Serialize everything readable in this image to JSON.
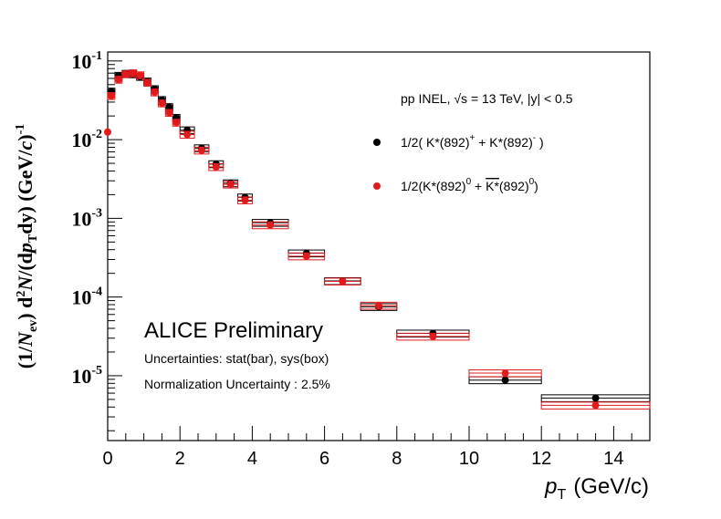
{
  "chart_data": {
    "type": "scatter",
    "title": "",
    "xlabel_main": "p",
    "xlabel_sub": "T",
    "xlabel_unit": "(GeV/c)",
    "ylabel": "(1/N_ev) d²N/(dp_T dy) (GeV/c)⁻¹",
    "xlim": [
      0,
      15
    ],
    "ylim": [
      1.5e-06,
      0.13
    ],
    "yscale": "log",
    "x_ticks": [
      "0",
      "2",
      "4",
      "6",
      "8",
      "10",
      "12",
      "14"
    ],
    "y_ticks": [
      "10",
      "10",
      "10",
      "10",
      "10"
    ],
    "y_tick_exponents": [
      "-1",
      "-2",
      "-3",
      "-4",
      "-5"
    ],
    "annotations": {
      "experiment": "ALICE Preliminary",
      "uncertainties": "Uncertainties: stat(bar), sys(box)",
      "normalization": "Normalization Uncertainty : 2.5%",
      "system": "pp INEL, √s = 13 TeV, |y| < 0.5"
    },
    "legend_position": "top-right",
    "series": [
      {
        "name": "1/2( K*(892)+ + K*(892)- )",
        "color": "#000000",
        "points": [
          {
            "x": 0.1,
            "xlo": 0.0,
            "xhi": 0.2,
            "y": 0.041
          },
          {
            "x": 0.3,
            "xlo": 0.2,
            "xhi": 0.4,
            "y": 0.065
          },
          {
            "x": 0.5,
            "xlo": 0.4,
            "xhi": 0.6,
            "y": 0.069
          },
          {
            "x": 0.7,
            "xlo": 0.6,
            "xhi": 0.8,
            "y": 0.068
          },
          {
            "x": 0.9,
            "xlo": 0.8,
            "xhi": 1.0,
            "y": 0.063
          },
          {
            "x": 1.1,
            "xlo": 1.0,
            "xhi": 1.2,
            "y": 0.055
          },
          {
            "x": 1.3,
            "xlo": 1.2,
            "xhi": 1.4,
            "y": 0.044
          },
          {
            "x": 1.5,
            "xlo": 1.4,
            "xhi": 1.6,
            "y": 0.032
          },
          {
            "x": 1.7,
            "xlo": 1.6,
            "xhi": 1.8,
            "y": 0.026
          },
          {
            "x": 1.9,
            "xlo": 1.8,
            "xhi": 2.0,
            "y": 0.019
          },
          {
            "x": 2.2,
            "xlo": 2.0,
            "xhi": 2.4,
            "y": 0.0132
          },
          {
            "x": 2.6,
            "xlo": 2.4,
            "xhi": 2.8,
            "y": 0.0078
          },
          {
            "x": 3.0,
            "xlo": 2.8,
            "xhi": 3.2,
            "y": 0.0049
          },
          {
            "x": 3.4,
            "xlo": 3.2,
            "xhi": 3.6,
            "y": 0.0028
          },
          {
            "x": 3.8,
            "xlo": 3.6,
            "xhi": 4.0,
            "y": 0.00185
          },
          {
            "x": 4.5,
            "xlo": 4.0,
            "xhi": 5.0,
            "y": 0.00088
          },
          {
            "x": 5.5,
            "xlo": 5.0,
            "xhi": 6.0,
            "y": 0.00036
          },
          {
            "x": 6.5,
            "xlo": 6.0,
            "xhi": 7.0,
            "y": 0.00016
          },
          {
            "x": 7.5,
            "xlo": 7.0,
            "xhi": 8.0,
            "y": 7.5e-05
          },
          {
            "x": 9.0,
            "xlo": 8.0,
            "xhi": 10.0,
            "y": 3.45e-05
          },
          {
            "x": 11.0,
            "xlo": 10.0,
            "xhi": 12.0,
            "y": 8.8e-06
          },
          {
            "x": 13.5,
            "xlo": 12.0,
            "xhi": 15.0,
            "y": 5.2e-06
          }
        ]
      },
      {
        "name": "1/2(K*(892)0 + anti-K*(892)0)",
        "color": "#e31a1c",
        "points": [
          {
            "x": 0.0,
            "xlo": 0.0,
            "xhi": 0.05,
            "y": 0.0125
          },
          {
            "x": 0.1,
            "xlo": 0.0,
            "xhi": 0.2,
            "y": 0.036
          },
          {
            "x": 0.3,
            "xlo": 0.2,
            "xhi": 0.4,
            "y": 0.058
          },
          {
            "x": 0.5,
            "xlo": 0.4,
            "xhi": 0.6,
            "y": 0.068
          },
          {
            "x": 0.7,
            "xlo": 0.6,
            "xhi": 0.8,
            "y": 0.07
          },
          {
            "x": 0.9,
            "xlo": 0.8,
            "xhi": 1.0,
            "y": 0.066
          },
          {
            "x": 1.1,
            "xlo": 1.0,
            "xhi": 1.2,
            "y": 0.053
          },
          {
            "x": 1.3,
            "xlo": 1.2,
            "xhi": 1.4,
            "y": 0.04
          },
          {
            "x": 1.5,
            "xlo": 1.4,
            "xhi": 1.6,
            "y": 0.029
          },
          {
            "x": 1.7,
            "xlo": 1.6,
            "xhi": 1.8,
            "y": 0.022
          },
          {
            "x": 1.9,
            "xlo": 1.8,
            "xhi": 2.0,
            "y": 0.0165
          },
          {
            "x": 2.2,
            "xlo": 2.0,
            "xhi": 2.4,
            "y": 0.0116
          },
          {
            "x": 2.6,
            "xlo": 2.4,
            "xhi": 2.8,
            "y": 0.0073
          },
          {
            "x": 3.0,
            "xlo": 2.8,
            "xhi": 3.2,
            "y": 0.0045
          },
          {
            "x": 3.4,
            "xlo": 3.2,
            "xhi": 3.6,
            "y": 0.0027
          },
          {
            "x": 3.8,
            "xlo": 3.6,
            "xhi": 4.0,
            "y": 0.0017
          },
          {
            "x": 4.5,
            "xlo": 4.0,
            "xhi": 5.0,
            "y": 0.00082
          },
          {
            "x": 5.5,
            "xlo": 5.0,
            "xhi": 6.0,
            "y": 0.00033
          },
          {
            "x": 6.5,
            "xlo": 6.0,
            "xhi": 7.0,
            "y": 0.000158
          },
          {
            "x": 7.5,
            "xlo": 7.0,
            "xhi": 8.0,
            "y": 7.8e-05
          },
          {
            "x": 9.0,
            "xlo": 8.0,
            "xhi": 10.0,
            "y": 3.15e-05
          },
          {
            "x": 11.0,
            "xlo": 10.0,
            "xhi": 12.0,
            "y": 1.08e-05
          },
          {
            "x": 13.5,
            "xlo": 12.0,
            "xhi": 15.0,
            "y": 4.2e-06
          }
        ]
      }
    ]
  }
}
